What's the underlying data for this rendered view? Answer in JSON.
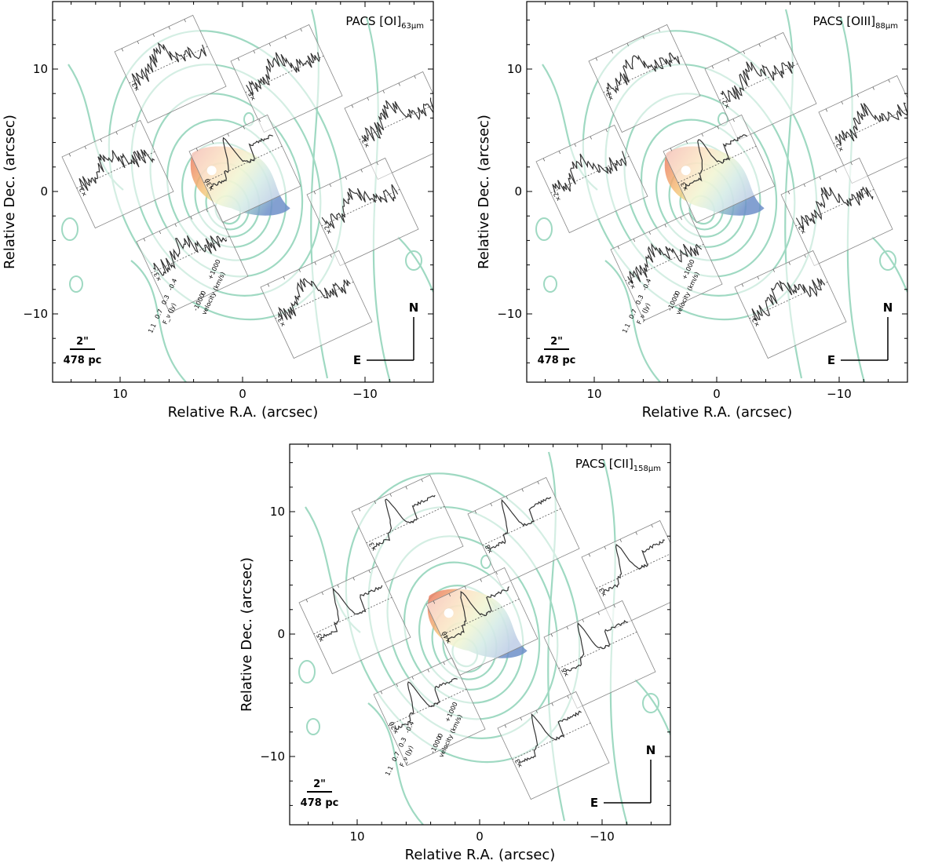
{
  "figure": {
    "panels": [
      {
        "id": "oi",
        "title_main": "PACS [OI]",
        "title_sub": "63μm",
        "multipliers": [
          "×3",
          "×5",
          "×3",
          "×2",
          "×30",
          "×2",
          "×3",
          "×3"
        ],
        "scale_bar": "2\"",
        "scale_phys": "478 pc",
        "compass_n": "N",
        "compass_e": "E",
        "axis_labels": {
          "x": "Relative R.A. (arcsec)",
          "y": "Relative Dec. (arcsec)"
        },
        "x_ticks": [
          "10",
          "0",
          "−10"
        ],
        "y_ticks": [
          "10",
          "0",
          "−10"
        ],
        "inset_legend": {
          "flux_ticks": [
            "1.1",
            "0.7",
            "0.3",
            "-0.4"
          ],
          "flux_label": "F_ν (Jy)",
          "vel_ticks": [
            "-1000",
            "0",
            "+1000"
          ],
          "vel_label": "velocity (km/s)"
        }
      },
      {
        "id": "oiii",
        "title_main": "PACS [OIII]",
        "title_sub": "88μm",
        "multipliers": [
          "×2",
          "×2",
          "×2",
          "×2",
          "×3",
          "×2",
          "×2",
          "×2"
        ],
        "scale_bar": "2\"",
        "scale_phys": "478 pc",
        "compass_n": "N",
        "compass_e": "E",
        "axis_labels": {
          "x": "Relative R.A. (arcsec)",
          "y": "Relative Dec. (arcsec)"
        },
        "x_ticks": [
          "10",
          "0",
          "−10"
        ],
        "y_ticks": [
          "10",
          "0",
          "−10"
        ],
        "inset_legend": {
          "flux_ticks": [
            "1.1",
            "0.7",
            "0.3",
            "-0.4"
          ],
          "flux_label": "F_ν (Jy)",
          "vel_ticks": [
            "-1000",
            "0",
            "+1000"
          ],
          "vel_label": "velocity (km/s)"
        }
      },
      {
        "id": "cii",
        "title_main": "PACS [CII]",
        "title_sub": "158μm",
        "multipliers": [
          "×3",
          "×8",
          "×3",
          "×5",
          "×40",
          "×5",
          "×20",
          "×3"
        ],
        "scale_bar": "2\"",
        "scale_phys": "478 pc",
        "compass_n": "N",
        "compass_e": "E",
        "axis_labels": {
          "x": "Relative R.A. (arcsec)",
          "y": "Relative Dec. (arcsec)"
        },
        "x_ticks": [
          "10",
          "0",
          "−10"
        ],
        "y_ticks": [
          "10",
          "0",
          "−10"
        ],
        "inset_legend": {
          "flux_ticks": [
            "1.1",
            "0.7",
            "0.3",
            "-0.4"
          ],
          "flux_label": "F_ν (Jy)",
          "vel_ticks": [
            "-1000",
            "0",
            "+1000"
          ],
          "vel_label": "velocity (km/s)"
        }
      }
    ],
    "colors": {
      "contour": "#9fd9c2",
      "spectrum": "#333333",
      "frame": "#000000",
      "inset_frame": "#888888",
      "velocity_red": "#e8705f",
      "velocity_blue": "#6d8fc9"
    }
  }
}
